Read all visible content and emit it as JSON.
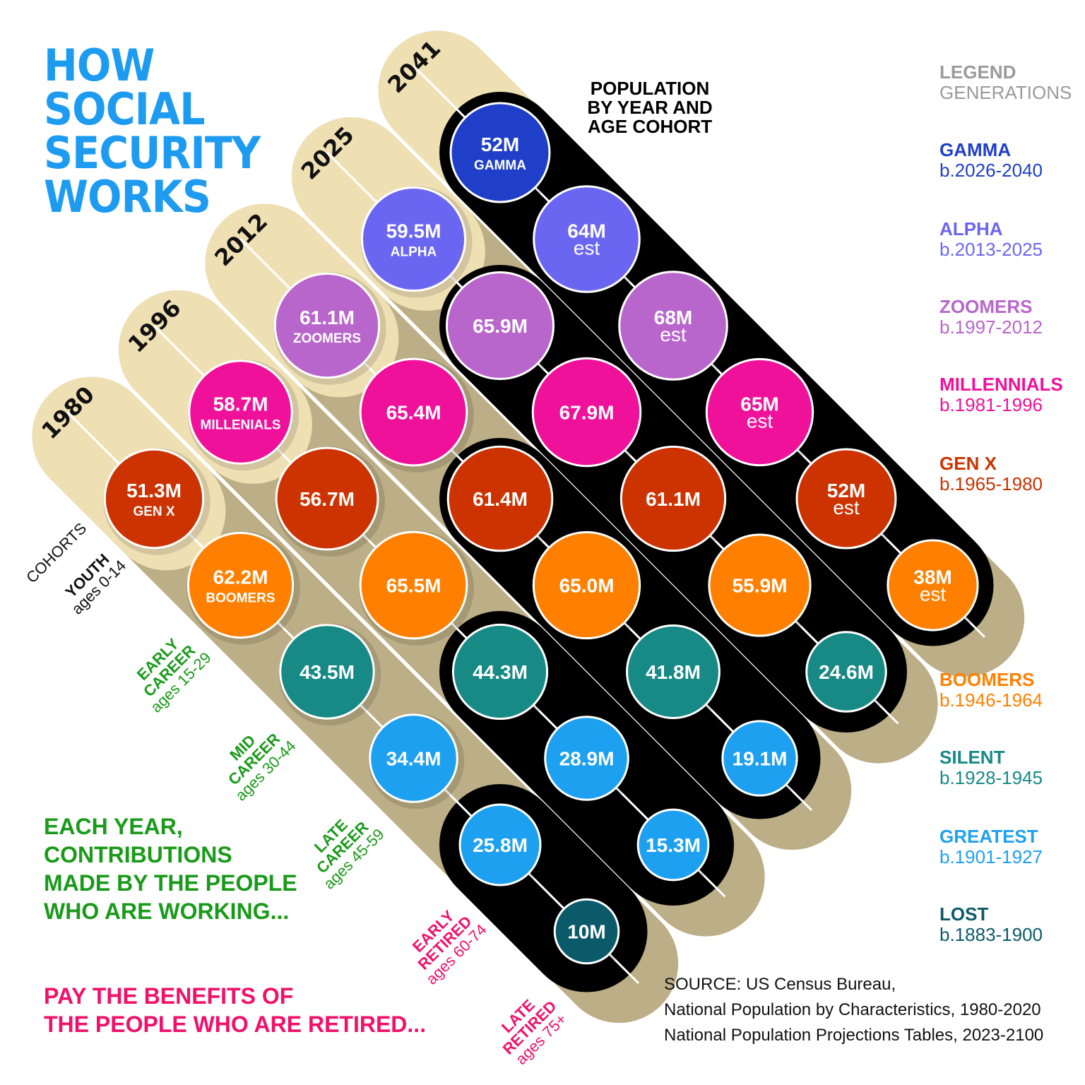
{
  "title": [
    "HOW",
    "SOCIAL",
    "SECURITY",
    "WORKS"
  ],
  "population_title": [
    "POPULATION",
    "BY YEAR AND",
    "AGE COHORT"
  ],
  "legend": {
    "heading": "LEGEND",
    "subheading": "GENERATIONS",
    "items": [
      {
        "name": "GAMMA",
        "years": "b.2026-2040",
        "color": "#1f3fc8"
      },
      {
        "name": "ALPHA",
        "years": "b.2013-2025",
        "color": "#6b66f2"
      },
      {
        "name": "ZOOMERS",
        "years": "b.1997-2012",
        "color": "#b866cc"
      },
      {
        "name": "MILLENNIALS",
        "years": "b.1981-1996",
        "color": "#f0119a"
      },
      {
        "name": "GEN X",
        "years": "b.1965-1980",
        "color": "#cc3300"
      },
      {
        "name": "BOOMERS",
        "years": "b.1946-1964",
        "color": "#ff8000"
      },
      {
        "name": "SILENT",
        "years": "b.1928-1945",
        "color": "#178a86"
      },
      {
        "name": "GREATEST",
        "years": "b.1901-1927",
        "color": "#1ea0f0"
      },
      {
        "name": "LOST",
        "years": "b.1883-1900",
        "color": "#0b5a6a"
      }
    ]
  },
  "cohorts_heading": "COHORTS",
  "cohorts": [
    {
      "name": "YOUTH",
      "ages": "ages 0-14",
      "color": "#111111"
    },
    {
      "name": "EARLY CAREER",
      "ages": "ages 15-29",
      "color": "#1a9a1a"
    },
    {
      "name": "MID CAREER",
      "ages": "ages 30-44",
      "color": "#1a9a1a"
    },
    {
      "name": "LATE CAREER",
      "ages": "ages 45-59",
      "color": "#1a9a1a"
    },
    {
      "name": "EARLY RETIRED",
      "ages": "ages 60-74",
      "color": "#f0116a"
    },
    {
      "name": "LATE RETIRED",
      "ages": "ages 75+",
      "color": "#f0116a"
    }
  ],
  "columns": [
    {
      "year": "1980",
      "cells": [
        {
          "value": "51.3M",
          "label": "GEN X",
          "gen": "GEN X"
        },
        {
          "value": "62.2M",
          "label": "BOOMERS",
          "gen": "BOOMERS"
        },
        {
          "value": "43.5M",
          "label": "",
          "gen": "SILENT"
        },
        {
          "value": "34.4M",
          "label": "",
          "gen": "GREATEST"
        },
        {
          "value": "25.8M",
          "label": "",
          "gen": "GREATEST"
        },
        {
          "value": "10M",
          "label": "",
          "gen": "LOST"
        }
      ]
    },
    {
      "year": "1996",
      "cells": [
        {
          "value": "58.7M",
          "label": "MILLENIALS",
          "gen": "MILLENNIALS"
        },
        {
          "value": "56.7M",
          "label": "",
          "gen": "GEN X"
        },
        {
          "value": "65.5M",
          "label": "",
          "gen": "BOOMERS"
        },
        {
          "value": "44.3M",
          "label": "",
          "gen": "SILENT"
        },
        {
          "value": "28.9M",
          "label": "",
          "gen": "GREATEST"
        },
        {
          "value": "15.3M",
          "label": "",
          "gen": "GREATEST"
        }
      ]
    },
    {
      "year": "2012",
      "cells": [
        {
          "value": "61.1M",
          "label": "ZOOMERS",
          "gen": "ZOOMERS"
        },
        {
          "value": "65.4M",
          "label": "",
          "gen": "MILLENNIALS"
        },
        {
          "value": "61.4M",
          "label": "",
          "gen": "GEN X"
        },
        {
          "value": "65.0M",
          "label": "",
          "gen": "BOOMERS"
        },
        {
          "value": "41.8M",
          "label": "",
          "gen": "SILENT"
        },
        {
          "value": "19.1M",
          "label": "",
          "gen": "GREATEST"
        }
      ]
    },
    {
      "year": "2025",
      "cells": [
        {
          "value": "59.5M",
          "label": "ALPHA",
          "gen": "ALPHA"
        },
        {
          "value": "65.9M",
          "label": "",
          "gen": "ZOOMERS"
        },
        {
          "value": "67.9M",
          "label": "",
          "gen": "MILLENNIALS"
        },
        {
          "value": "61.1M",
          "label": "",
          "gen": "GEN X"
        },
        {
          "value": "55.9M",
          "label": "",
          "gen": "BOOMERS"
        },
        {
          "value": "24.6M",
          "label": "",
          "gen": "SILENT"
        }
      ]
    },
    {
      "year": "2041",
      "cells": [
        {
          "value": "52M",
          "label": "GAMMA",
          "gen": "GAMMA"
        },
        {
          "value": "64M",
          "label": "est",
          "gen": "ALPHA"
        },
        {
          "value": "68M",
          "label": "est",
          "gen": "ZOOMERS"
        },
        {
          "value": "65M",
          "label": "est",
          "gen": "MILLENNIALS"
        },
        {
          "value": "52M",
          "label": "est",
          "gen": "GEN X"
        },
        {
          "value": "38M",
          "label": "est",
          "gen": "BOOMERS"
        }
      ]
    }
  ],
  "message_working": [
    "EACH YEAR,",
    "CONTRIBUTIONS",
    "MADE BY THE PEOPLE",
    "WHO ARE WORKING..."
  ],
  "message_retired": [
    "PAY THE BENEFITS OF",
    "THE PEOPLE WHO ARE RETIRED..."
  ],
  "source": [
    "SOURCE: US Census Bureau,",
    "National Population by Characteristics, 1980-2020",
    "National Population Projections Tables, 2023-2100"
  ],
  "colors": {
    "title": "#1d9bf0",
    "band_light": "#efe0b4",
    "band_dark": "#bcae86",
    "retired_band": "#000000",
    "working_text": "#1a9a1a",
    "retired_text": "#f0116a"
  }
}
